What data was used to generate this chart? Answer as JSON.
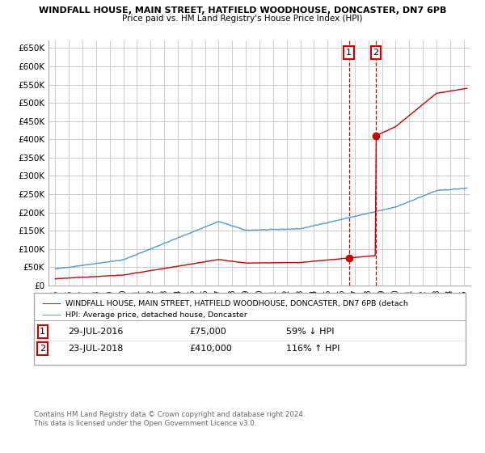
{
  "title_line1": "WINDFALL HOUSE, MAIN STREET, HATFIELD WOODHOUSE, DONCASTER, DN7 6PB",
  "title_line2": "Price paid vs. HM Land Registry's House Price Index (HPI)",
  "background_color": "#ffffff",
  "plot_bg_color": "#ffffff",
  "grid_color": "#cccccc",
  "red_line_color": "#cc0000",
  "blue_line_color": "#5599cc",
  "dashed_color": "#cc0000",
  "sale1_x": 2016.57,
  "sale1_y": 75000,
  "sale2_x": 2018.56,
  "sale2_y": 410000,
  "legend_label1": "WINDFALL HOUSE, MAIN STREET, HATFIELD WOODHOUSE, DONCASTER, DN7 6PB (detach",
  "legend_label2": "HPI: Average price, detached house, Doncaster",
  "ann1_date": "29-JUL-2016",
  "ann1_price": "£75,000",
  "ann1_hpi": "59% ↓ HPI",
  "ann2_date": "23-JUL-2018",
  "ann2_price": "£410,000",
  "ann2_hpi": "116% ↑ HPI",
  "footer": "Contains HM Land Registry data © Crown copyright and database right 2024.\nThis data is licensed under the Open Government Licence v3.0.",
  "ylim_min": 0,
  "ylim_max": 670000,
  "xlim_min": 1994.5,
  "xlim_max": 2025.5,
  "yticks": [
    0,
    50000,
    100000,
    150000,
    200000,
    250000,
    300000,
    350000,
    400000,
    450000,
    500000,
    550000,
    600000,
    650000
  ],
  "ytick_labels": [
    "£0",
    "£50K",
    "£100K",
    "£150K",
    "£200K",
    "£250K",
    "£300K",
    "£350K",
    "£400K",
    "£450K",
    "£500K",
    "£550K",
    "£600K",
    "£650K"
  ],
  "xticks": [
    1995,
    1996,
    1997,
    1998,
    1999,
    2000,
    2001,
    2002,
    2003,
    2004,
    2005,
    2006,
    2007,
    2008,
    2009,
    2010,
    2011,
    2012,
    2013,
    2014,
    2015,
    2016,
    2017,
    2018,
    2019,
    2020,
    2021,
    2022,
    2023,
    2024,
    2025
  ]
}
